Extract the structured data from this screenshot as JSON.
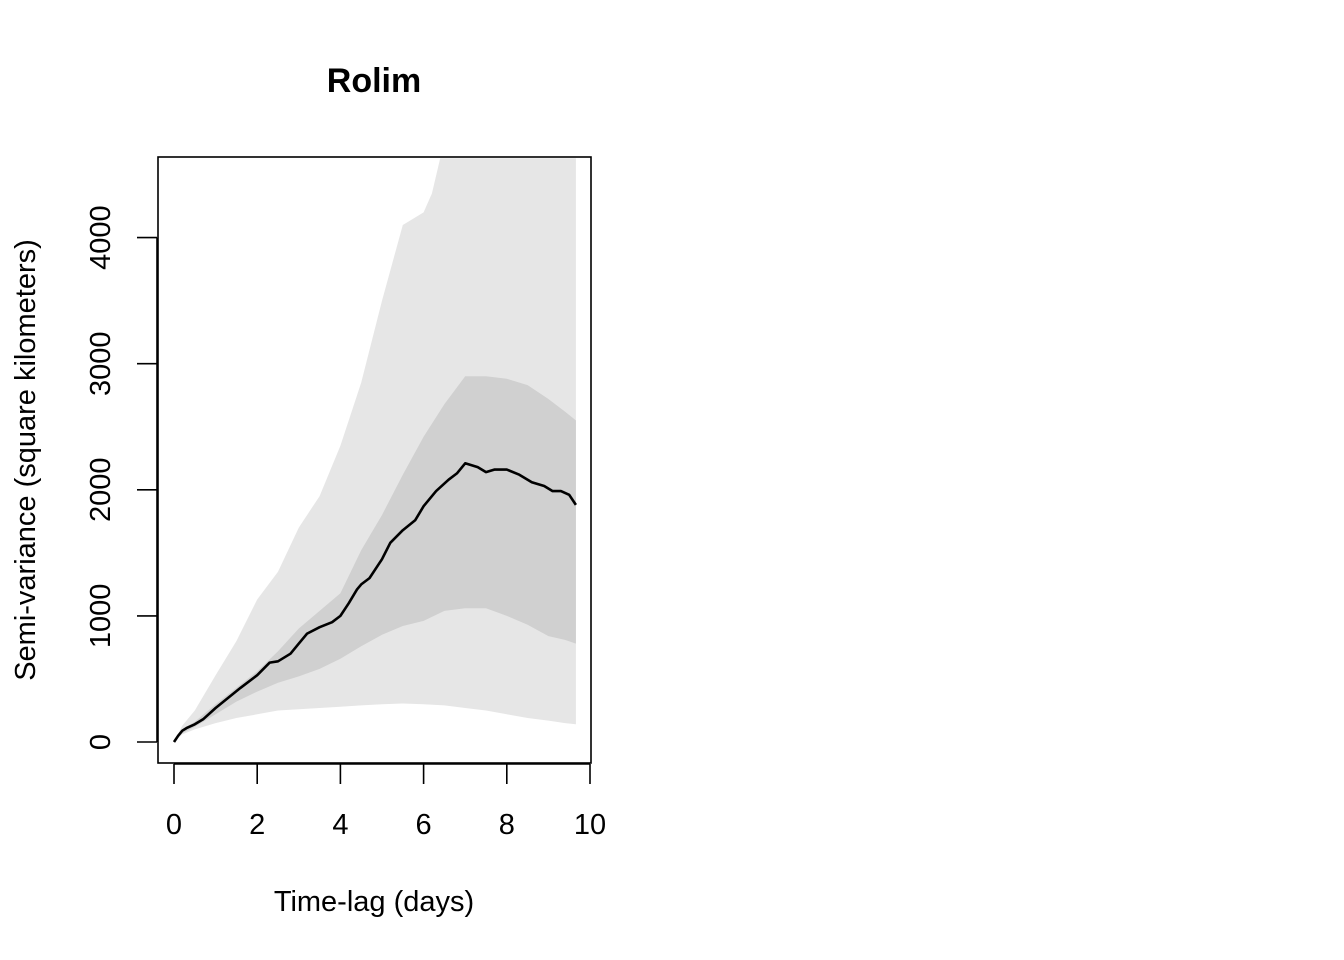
{
  "chart_data": {
    "type": "line",
    "title": "Rolim",
    "xlabel": "Time-lag (days)",
    "ylabel": "Semi-variance (square kilometers)",
    "xlim": [
      0,
      10
    ],
    "ylim": [
      -180,
      4630
    ],
    "xticks": [
      "0",
      "2",
      "4",
      "6",
      "8",
      "10"
    ],
    "yticks": [
      "0",
      "1000",
      "2000",
      "3000",
      "4000"
    ],
    "grid": false,
    "colors": {
      "line": "#000000",
      "inner_band": "#d0d0d0",
      "outer_band": "#e6e6e6",
      "frame": "#000000"
    },
    "series": [
      {
        "role": "estimate",
        "x": [
          0,
          0.1,
          0.2,
          0.3,
          0.5,
          0.7,
          1.0,
          1.3,
          1.6,
          2.0,
          2.3,
          2.5,
          2.8,
          3.0,
          3.2,
          3.5,
          3.8,
          4.0,
          4.2,
          4.4,
          4.5,
          4.7,
          5.0,
          5.2,
          5.5,
          5.8,
          6.0,
          6.3,
          6.6,
          6.8,
          7.0,
          7.3,
          7.5,
          7.7,
          8.0,
          8.3,
          8.6,
          8.9,
          9.1,
          9.3,
          9.5,
          9.66
        ],
        "y": [
          0,
          50,
          90,
          110,
          140,
          180,
          270,
          350,
          430,
          530,
          630,
          640,
          700,
          780,
          860,
          910,
          950,
          1000,
          1100,
          1210,
          1250,
          1300,
          1450,
          1580,
          1680,
          1760,
          1870,
          1990,
          2080,
          2130,
          2210,
          2180,
          2140,
          2160,
          2160,
          2120,
          2060,
          2030,
          1990,
          1990,
          1960,
          1880
        ]
      },
      {
        "role": "inner_upper",
        "x": [
          0,
          0.2,
          0.5,
          1.0,
          1.5,
          2.0,
          2.5,
          3.0,
          3.5,
          4.0,
          4.5,
          5.0,
          5.5,
          6.0,
          6.5,
          7.0,
          7.5,
          8.0,
          8.5,
          9.0,
          9.4,
          9.66
        ],
        "y": [
          0,
          100,
          160,
          300,
          430,
          560,
          720,
          900,
          1040,
          1180,
          1520,
          1800,
          2120,
          2420,
          2680,
          2900,
          2900,
          2880,
          2830,
          2720,
          2620,
          2550
        ]
      },
      {
        "role": "inner_lower",
        "x": [
          0,
          0.2,
          0.5,
          1.0,
          1.5,
          2.0,
          2.5,
          3.0,
          3.5,
          4.0,
          4.5,
          5.0,
          5.5,
          6.0,
          6.5,
          7.0,
          7.5,
          8.0,
          8.5,
          9.0,
          9.4,
          9.66
        ],
        "y": [
          0,
          70,
          120,
          220,
          320,
          400,
          470,
          520,
          580,
          660,
          760,
          850,
          920,
          960,
          1040,
          1060,
          1060,
          1000,
          930,
          840,
          810,
          780
        ]
      },
      {
        "role": "outer_upper",
        "x": [
          0,
          0.2,
          0.5,
          1.0,
          1.5,
          2.0,
          2.5,
          3.0,
          3.5,
          4.0,
          4.5,
          5.0,
          5.5,
          6.0,
          6.2,
          6.4,
          6.6,
          6.8,
          7.0,
          9.66
        ],
        "y": [
          0,
          130,
          250,
          530,
          800,
          1130,
          1350,
          1700,
          1950,
          2350,
          2850,
          3500,
          4100,
          4200,
          4350,
          4630,
          4630,
          4630,
          4630,
          4630
        ]
      },
      {
        "role": "outer_lower",
        "x": [
          0,
          0.2,
          0.5,
          1.0,
          1.5,
          2.0,
          2.5,
          3.0,
          3.5,
          4.0,
          4.5,
          5.0,
          5.5,
          6.0,
          6.5,
          7.0,
          7.5,
          8.0,
          8.5,
          9.0,
          9.4,
          9.66
        ],
        "y": [
          0,
          60,
          100,
          150,
          190,
          220,
          250,
          260,
          270,
          280,
          290,
          300,
          305,
          300,
          290,
          270,
          250,
          220,
          190,
          170,
          150,
          140
        ]
      }
    ]
  }
}
